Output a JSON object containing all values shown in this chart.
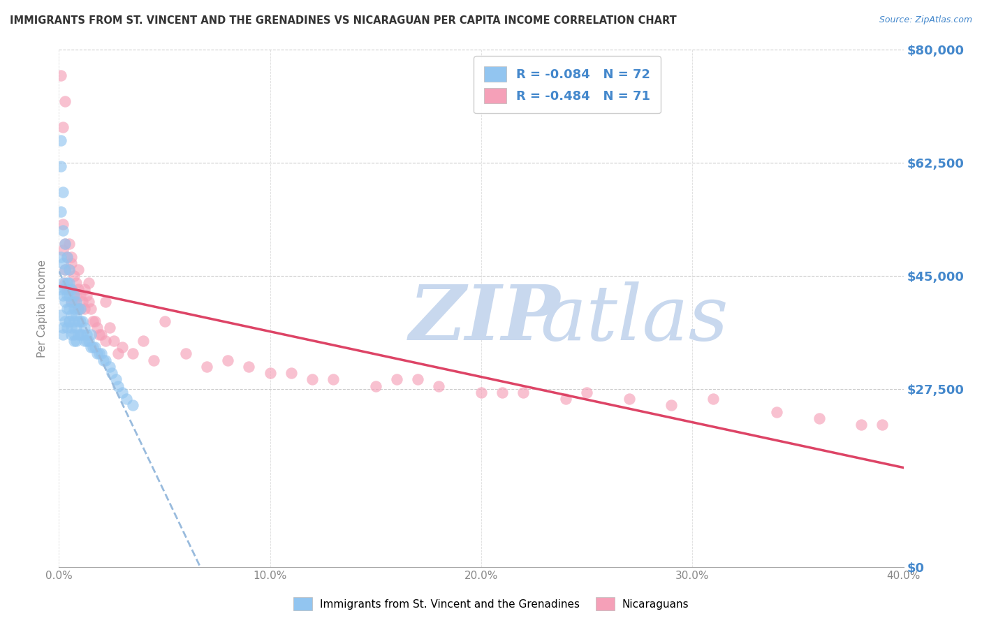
{
  "title": "IMMIGRANTS FROM ST. VINCENT AND THE GRENADINES VS NICARAGUAN PER CAPITA INCOME CORRELATION CHART",
  "source": "Source: ZipAtlas.com",
  "ylabel_label": "Per Capita Income",
  "x_min": 0.0,
  "x_max": 0.4,
  "y_min": 0,
  "y_max": 80000,
  "x_ticks": [
    0.0,
    0.1,
    0.2,
    0.3,
    0.4
  ],
  "x_tick_labels": [
    "0.0%",
    "10.0%",
    "20.0%",
    "30.0%",
    "40.0%"
  ],
  "y_ticks": [
    0,
    27500,
    45000,
    62500,
    80000
  ],
  "y_tick_labels": [
    "$0",
    "$27,500",
    "$45,000",
    "$62,500",
    "$80,000"
  ],
  "legend_label_1": "R = -0.084   N = 72",
  "legend_label_2": "R = -0.484   N = 71",
  "blue_R": -0.084,
  "blue_N": 72,
  "pink_R": -0.484,
  "pink_N": 71,
  "blue_color": "#92c5f0",
  "pink_color": "#f5a0b8",
  "blue_line_color": "#3355bb",
  "pink_line_color": "#dd4466",
  "dashed_line_color": "#99bbdd",
  "watermark_zip_color": "#c8d8ee",
  "watermark_atlas_color": "#c8d8ee",
  "title_color": "#333333",
  "source_color": "#4488cc",
  "axis_text_color": "#888888",
  "ytick_color": "#4488cc",
  "legend_text_color": "#4488cc",
  "blue_scatter_x": [
    0.001,
    0.001,
    0.001,
    0.001,
    0.002,
    0.002,
    0.002,
    0.002,
    0.002,
    0.003,
    0.003,
    0.003,
    0.003,
    0.004,
    0.004,
    0.004,
    0.004,
    0.005,
    0.005,
    0.005,
    0.005,
    0.005,
    0.006,
    0.006,
    0.006,
    0.006,
    0.007,
    0.007,
    0.007,
    0.007,
    0.008,
    0.008,
    0.008,
    0.008,
    0.009,
    0.009,
    0.009,
    0.01,
    0.01,
    0.01,
    0.011,
    0.011,
    0.012,
    0.012,
    0.013,
    0.013,
    0.014,
    0.015,
    0.015,
    0.016,
    0.017,
    0.018,
    0.019,
    0.02,
    0.021,
    0.022,
    0.024,
    0.025,
    0.027,
    0.028,
    0.03,
    0.032,
    0.035,
    0.001,
    0.001,
    0.002,
    0.002,
    0.003,
    0.004,
    0.005,
    0.006,
    0.007
  ],
  "blue_scatter_y": [
    66000,
    62000,
    55000,
    48000,
    58000,
    52000,
    47000,
    44000,
    42000,
    50000,
    46000,
    43000,
    41000,
    48000,
    44000,
    42000,
    40000,
    46000,
    44000,
    42000,
    40000,
    38000,
    43000,
    41000,
    39000,
    37000,
    42000,
    40000,
    38000,
    36000,
    41000,
    39000,
    37000,
    35000,
    40000,
    38000,
    36000,
    40000,
    38000,
    36000,
    38000,
    36000,
    37000,
    35000,
    36000,
    35000,
    35000,
    36000,
    34000,
    34000,
    34000,
    33000,
    33000,
    33000,
    32000,
    32000,
    31000,
    30000,
    29000,
    28000,
    27000,
    26000,
    25000,
    43000,
    39000,
    37000,
    36000,
    38000,
    37000,
    38000,
    36000,
    35000
  ],
  "pink_scatter_x": [
    0.001,
    0.002,
    0.002,
    0.003,
    0.003,
    0.003,
    0.004,
    0.004,
    0.005,
    0.005,
    0.005,
    0.006,
    0.006,
    0.007,
    0.007,
    0.008,
    0.008,
    0.009,
    0.009,
    0.01,
    0.01,
    0.011,
    0.012,
    0.012,
    0.013,
    0.014,
    0.015,
    0.016,
    0.017,
    0.018,
    0.019,
    0.02,
    0.022,
    0.024,
    0.026,
    0.028,
    0.03,
    0.035,
    0.04,
    0.045,
    0.05,
    0.06,
    0.07,
    0.08,
    0.09,
    0.1,
    0.11,
    0.12,
    0.13,
    0.15,
    0.16,
    0.17,
    0.18,
    0.2,
    0.21,
    0.22,
    0.24,
    0.25,
    0.27,
    0.29,
    0.31,
    0.34,
    0.36,
    0.38,
    0.002,
    0.003,
    0.006,
    0.009,
    0.014,
    0.022,
    0.39
  ],
  "pink_scatter_y": [
    76000,
    53000,
    49000,
    50000,
    46000,
    44000,
    48000,
    43000,
    50000,
    46000,
    43000,
    47000,
    41000,
    45000,
    41000,
    44000,
    42000,
    43000,
    40000,
    42000,
    40000,
    41000,
    43000,
    40000,
    42000,
    41000,
    40000,
    38000,
    38000,
    37000,
    36000,
    36000,
    35000,
    37000,
    35000,
    33000,
    34000,
    33000,
    35000,
    32000,
    38000,
    33000,
    31000,
    32000,
    31000,
    30000,
    30000,
    29000,
    29000,
    28000,
    29000,
    29000,
    28000,
    27000,
    27000,
    27000,
    26000,
    27000,
    26000,
    25000,
    26000,
    24000,
    23000,
    22000,
    68000,
    72000,
    48000,
    46000,
    44000,
    41000,
    22000
  ]
}
